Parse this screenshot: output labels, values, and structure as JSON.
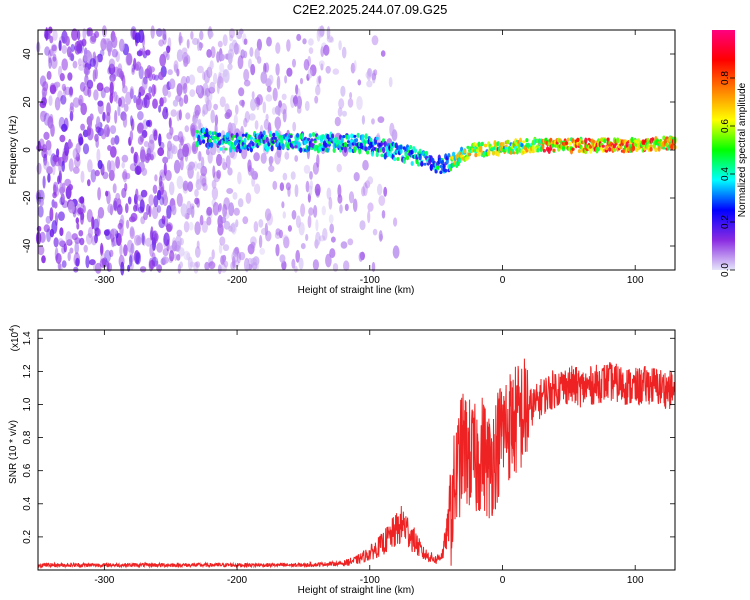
{
  "title": "C2E2.2025.244.07.09.G25",
  "chart_data": [
    {
      "type": "heatmap",
      "name": "spectrogram",
      "xlabel": "Height of straight line (km)",
      "ylabel": "Frequency (Hz)",
      "xlim": [
        -350,
        130
      ],
      "ylim": [
        -50,
        50
      ],
      "x_ticks": [
        -300,
        -200,
        -100,
        0,
        100
      ],
      "x_tick_labels": [
        "-300",
        "-200",
        "-100",
        "0",
        "100"
      ],
      "y_ticks": [
        -40,
        -20,
        0,
        20,
        40
      ],
      "y_tick_labels": [
        "-40",
        "-20",
        "0",
        "20",
        "40"
      ],
      "colorbar": {
        "label": "Normalized spectral amplitude",
        "range": [
          0,
          1
        ],
        "ticks": [
          0.0,
          0.2,
          0.4,
          0.6,
          0.8
        ],
        "tick_labels": [
          "0.0",
          "0.2",
          "0.4",
          "0.6",
          "0.8"
        ],
        "colors": [
          "#e6e6fa",
          "#8a2be2",
          "#0000ff",
          "#00ffff",
          "#00ff00",
          "#ffff00",
          "#ff8000",
          "#ff0000",
          "#ff0080"
        ]
      },
      "ridge": {
        "x": [
          -230,
          -200,
          -170,
          -140,
          -110,
          -90,
          -70,
          -55,
          -45,
          -35,
          -20,
          0,
          30,
          60,
          100,
          130
        ],
        "freq_hz": [
          5,
          3,
          4,
          3,
          3,
          1,
          -2,
          -5,
          -7,
          -3,
          0,
          1,
          2,
          2,
          2,
          3
        ]
      },
      "noise_region_xlim": [
        -350,
        -120
      ]
    },
    {
      "type": "line",
      "name": "snr",
      "xlabel": "Height of straight line (km)",
      "ylabel": "SNR (10 * v/v)",
      "multiplier_label": "(x10",
      "multiplier_exponent": "4",
      "multiplier_close": ")",
      "xlim": [
        -350,
        130
      ],
      "ylim": [
        0,
        1.45
      ],
      "x_ticks": [
        -300,
        -200,
        -100,
        0,
        100
      ],
      "x_tick_labels": [
        "-300",
        "-200",
        "-100",
        "0",
        "100"
      ],
      "y_ticks": [
        0.2,
        0.4,
        0.6,
        0.8,
        1.0,
        1.2,
        1.4
      ],
      "y_tick_labels": [
        "0.2",
        "0.4",
        "0.6",
        "0.8",
        "1.0",
        "1.2",
        "1.4"
      ],
      "line_color": "#ee2222",
      "series": [
        {
          "name": "SNR",
          "x": [
            -350,
            -300,
            -250,
            -200,
            -150,
            -120,
            -110,
            -100,
            -90,
            -80,
            -75,
            -70,
            -60,
            -50,
            -45,
            -40,
            -35,
            -30,
            -25,
            -20,
            -15,
            -10,
            -5,
            0,
            10,
            20,
            25,
            30,
            40,
            50,
            60,
            70,
            80,
            90,
            100,
            110,
            120,
            130
          ],
          "y": [
            0.03,
            0.03,
            0.03,
            0.03,
            0.03,
            0.04,
            0.06,
            0.1,
            0.16,
            0.24,
            0.28,
            0.22,
            0.1,
            0.06,
            0.1,
            0.3,
            0.55,
            0.75,
            0.7,
            0.65,
            0.72,
            0.62,
            0.72,
            0.85,
            0.9,
            0.98,
            1.0,
            1.05,
            1.1,
            1.12,
            1.1,
            1.12,
            1.14,
            1.12,
            1.1,
            1.12,
            1.1,
            1.08
          ]
        }
      ]
    }
  ]
}
